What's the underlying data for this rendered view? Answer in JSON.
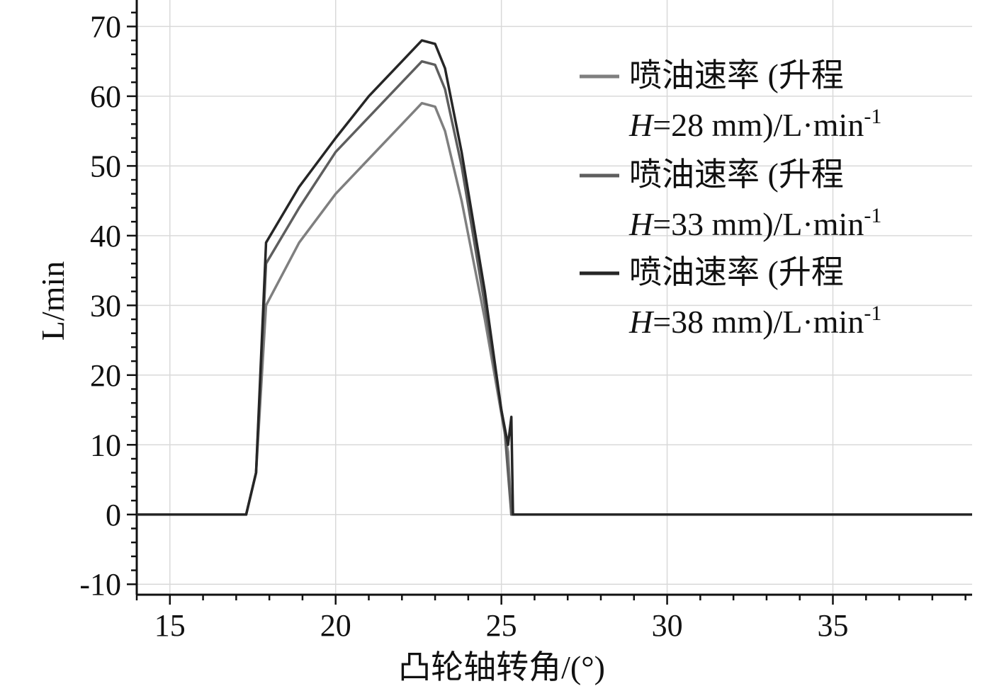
{
  "chart_data": {
    "type": "line",
    "xlabel": "凸轮轴转角/(°)",
    "ylabel": "L/min",
    "xlim": [
      14,
      39.2
    ],
    "ylim": [
      -11.5,
      73.8
    ],
    "xticks": [
      15,
      20,
      25,
      30,
      35
    ],
    "yticks": [
      -10,
      0,
      10,
      20,
      30,
      40,
      50,
      60,
      70
    ],
    "grid": true,
    "legend_position": "top-right",
    "series": [
      {
        "name": "喷油速率 (升程 H=28 mm)/L·min⁻¹",
        "legend_line1": "喷油速率 (升程",
        "legend_italic": "H",
        "legend_rest": "=28 mm)/L·min",
        "legend_sup": "-1",
        "color": "#7f7f7f",
        "x": [
          14,
          17.3,
          17.6,
          17.9,
          18.9,
          20.0,
          21.0,
          22.0,
          22.6,
          23.0,
          23.3,
          23.8,
          24.5,
          25.2,
          25.3,
          25.4,
          39.2
        ],
        "y": [
          0,
          0,
          6,
          30,
          39,
          46,
          51,
          56,
          59,
          58.5,
          55,
          45,
          28,
          9,
          0,
          0,
          0
        ]
      },
      {
        "name": "喷油速率 (升程 H=33 mm)/L·min⁻¹",
        "legend_line1": "喷油速率 (升程",
        "legend_italic": "H",
        "legend_rest": "=33 mm)/L·min",
        "legend_sup": "-1",
        "color": "#5e5e5e",
        "x": [
          14,
          17.3,
          17.6,
          17.9,
          18.9,
          20.0,
          21.0,
          22.0,
          22.6,
          23.0,
          23.3,
          23.8,
          24.5,
          25.1,
          25.3,
          25.4,
          39.2
        ],
        "y": [
          0,
          0,
          6,
          36,
          44,
          52,
          57,
          62,
          65,
          64.5,
          61,
          50,
          30,
          12,
          0,
          0,
          0
        ]
      },
      {
        "name": "喷油速率 (升程 H=38 mm)/L·min⁻¹",
        "legend_line1": "喷油速率 (升程",
        "legend_italic": "H",
        "legend_rest": "=38 mm)/L·min",
        "legend_sup": "-1",
        "color": "#262626",
        "x": [
          14,
          17.3,
          17.6,
          17.9,
          18.9,
          20.0,
          21.0,
          22.0,
          22.6,
          23.0,
          23.3,
          23.8,
          24.5,
          25.0,
          25.2,
          25.3,
          25.35,
          25.4,
          39.2
        ],
        "y": [
          0,
          0,
          6,
          39,
          47,
          54,
          60,
          65,
          68,
          67.5,
          64,
          52,
          32,
          15,
          10,
          14,
          0,
          0,
          0
        ]
      }
    ]
  }
}
